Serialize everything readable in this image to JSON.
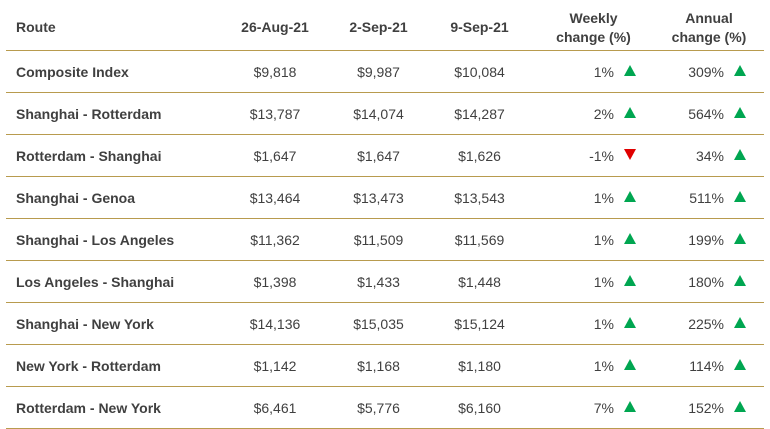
{
  "table": {
    "headers": {
      "route": "Route",
      "d1": "26-Aug-21",
      "d2": "2-Sep-21",
      "d3": "9-Sep-21",
      "weekly_line1": "Weekly",
      "weekly_line2": "change (%)",
      "annual_line1": "Annual",
      "annual_line2": "change (%)"
    },
    "rows": [
      {
        "route": "Composite Index",
        "d1": "$9,818",
        "d2": "$9,987",
        "d3": "$10,084",
        "weekly": "1%",
        "weekly_dir": "up",
        "annual": "309%",
        "annual_dir": "up"
      },
      {
        "route": "Shanghai - Rotterdam",
        "d1": "$13,787",
        "d2": "$14,074",
        "d3": "$14,287",
        "weekly": "2%",
        "weekly_dir": "up",
        "annual": "564%",
        "annual_dir": "up"
      },
      {
        "route": "Rotterdam - Shanghai",
        "d1": "$1,647",
        "d2": "$1,647",
        "d3": "$1,626",
        "weekly": "-1%",
        "weekly_dir": "down",
        "annual": "34%",
        "annual_dir": "up"
      },
      {
        "route": "Shanghai - Genoa",
        "d1": "$13,464",
        "d2": "$13,473",
        "d3": "$13,543",
        "weekly": "1%",
        "weekly_dir": "up",
        "annual": "511%",
        "annual_dir": "up"
      },
      {
        "route": "Shanghai - Los Angeles",
        "d1": "$11,362",
        "d2": "$11,509",
        "d3": "$11,569",
        "weekly": "1%",
        "weekly_dir": "up",
        "annual": "199%",
        "annual_dir": "up"
      },
      {
        "route": "Los Angeles - Shanghai",
        "d1": "$1,398",
        "d2": "$1,433",
        "d3": "$1,448",
        "weekly": "1%",
        "weekly_dir": "up",
        "annual": "180%",
        "annual_dir": "up"
      },
      {
        "route": "Shanghai - New York",
        "d1": "$14,136",
        "d2": "$15,035",
        "d3": "$15,124",
        "weekly": "1%",
        "weekly_dir": "up",
        "annual": "225%",
        "annual_dir": "up"
      },
      {
        "route": "New York - Rotterdam",
        "d1": "$1,142",
        "d2": "$1,168",
        "d3": "$1,180",
        "weekly": "1%",
        "weekly_dir": "up",
        "annual": "114%",
        "annual_dir": "up"
      },
      {
        "route": "Rotterdam - New York",
        "d1": "$6,461",
        "d2": "$5,776",
        "d3": "$6,160",
        "weekly": "7%",
        "weekly_dir": "up",
        "annual": "152%",
        "annual_dir": "up"
      }
    ]
  },
  "colors": {
    "rule": "#b89b4e",
    "text": "#404040",
    "up": "#00a651",
    "down": "#e00000"
  },
  "icons": {
    "up": "triangle-up-icon",
    "down": "triangle-down-icon"
  }
}
